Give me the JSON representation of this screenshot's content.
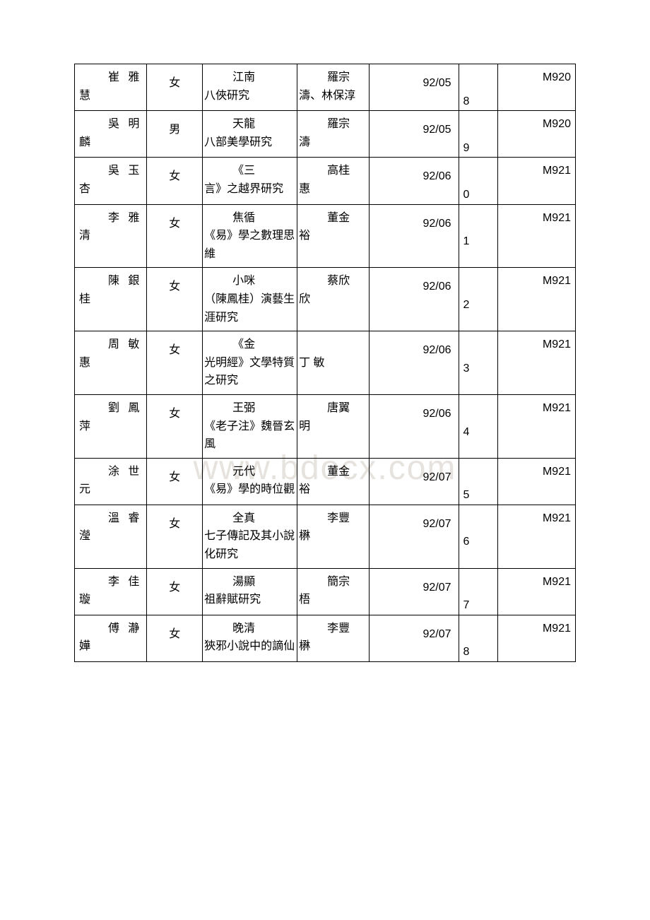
{
  "watermark": "www.bdocx.com",
  "columns": {
    "widths": [
      "13%",
      "10%",
      "17%",
      "13%",
      "16%",
      "7%",
      "14%"
    ]
  },
  "rows": [
    {
      "name_l1": "崔 雅",
      "name_l2": "慧",
      "gender": "女",
      "topic_first": "江南",
      "topic_rest": "八俠研究",
      "advisor_l1": "羅宗",
      "advisor_l2": "濤、林保淳",
      "date": "92/05",
      "idx": "8",
      "code": "M920"
    },
    {
      "name_l1": "吳 明",
      "name_l2": "麟",
      "gender": "男",
      "topic_first": "天龍",
      "topic_rest": "八部美學研究",
      "advisor_l1": "羅宗",
      "advisor_l2": "濤",
      "date": "92/05",
      "idx": "9",
      "code": "M920"
    },
    {
      "name_l1": "吳 玉",
      "name_l2": "杏",
      "gender": "女",
      "topic_first": "《三",
      "topic_rest": "言》之越界研究",
      "advisor_l1": "高桂",
      "advisor_l2": "惠",
      "date": "92/06",
      "idx": "0",
      "code": "M921"
    },
    {
      "name_l1": "李 雅",
      "name_l2": "清",
      "gender": "女",
      "topic_first": "焦循",
      "topic_rest": "《易》學之數理思維",
      "advisor_l1": "董金",
      "advisor_l2": "裕",
      "date": "92/06",
      "idx": "1",
      "code": "M921"
    },
    {
      "name_l1": "陳 銀",
      "name_l2": "桂",
      "gender": "女",
      "topic_first": "小咪",
      "topic_rest": "（陳鳳桂）演藝生涯研究",
      "advisor_l1": "蔡欣",
      "advisor_l2": "欣",
      "date": "92/06",
      "idx": "2",
      "code": "M921"
    },
    {
      "name_l1": "周 敏",
      "name_l2": "惠",
      "gender": "女",
      "topic_first": "《金",
      "topic_rest": "光明經》文學特質之研究",
      "advisor_l1": "",
      "advisor_l2": "丁 敏",
      "date": "92/06",
      "idx": "3",
      "code": "M921"
    },
    {
      "name_l1": "劉 鳳",
      "name_l2": "萍",
      "gender": "女",
      "topic_first": "王弼",
      "topic_rest": "《老子注》魏晉玄風",
      "advisor_l1": "唐翼",
      "advisor_l2": "明",
      "date": "92/06",
      "idx": "4",
      "code": "M921"
    },
    {
      "name_l1": "涂 世",
      "name_l2": "元",
      "gender": "女",
      "topic_first": "元代",
      "topic_rest": "《易》學的時位觀",
      "advisor_l1": "董金",
      "advisor_l2": "裕",
      "date": "92/07",
      "idx": "5",
      "code": "M921"
    },
    {
      "name_l1": "溫 睿",
      "name_l2": "瀅",
      "gender": "女",
      "topic_first": "全真",
      "topic_rest": "七子傳記及其小說化研究",
      "advisor_l1": "李豐",
      "advisor_l2": "楙",
      "date": "92/07",
      "idx": "6",
      "code": "M921"
    },
    {
      "name_l1": "李 佳",
      "name_l2": "璇",
      "gender": "女",
      "topic_first": "湯顯",
      "topic_rest": "祖辭賦研究",
      "advisor_l1": "簡宗",
      "advisor_l2": "梧",
      "date": "92/07",
      "idx": "7",
      "code": "M921"
    },
    {
      "name_l1": "傅 瀞",
      "name_l2": "嬅",
      "gender": "女",
      "topic_first": "晚清",
      "topic_rest": "狹邪小說中的謫仙",
      "advisor_l1": "李豐",
      "advisor_l2": "楙",
      "date": "92/07",
      "idx": "8",
      "code": "M921"
    }
  ]
}
